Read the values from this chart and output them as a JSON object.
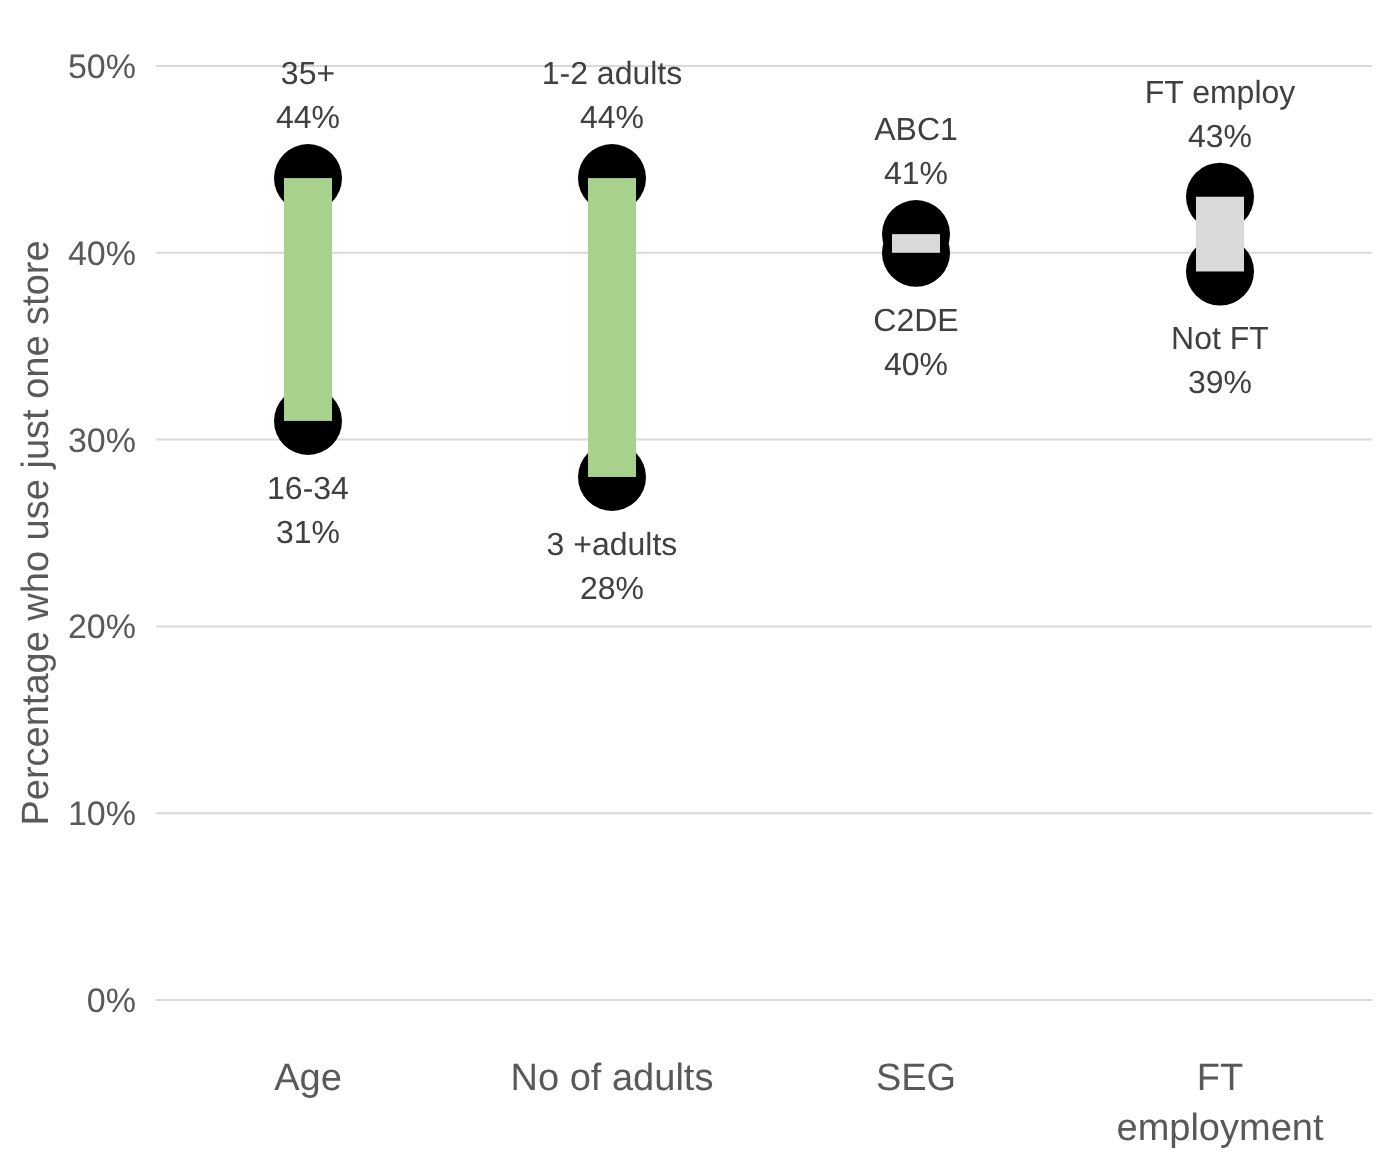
{
  "chart_data": {
    "type": "bar",
    "ylabel": "Percentage who use just one store",
    "categories": [
      "Age",
      "No of adults",
      "SEG",
      "FT employment"
    ],
    "ylim": [
      0,
      50
    ],
    "yticks": [
      {
        "value": 0,
        "label": "0%"
      },
      {
        "value": 10,
        "label": "10%"
      },
      {
        "value": 20,
        "label": "20%"
      },
      {
        "value": 30,
        "label": "30%"
      },
      {
        "value": 40,
        "label": "40%"
      },
      {
        "value": 50,
        "label": "50%"
      }
    ],
    "grid": "y",
    "marker": "circle",
    "series": [
      {
        "values": [
          13,
          16,
          1,
          4
        ],
        "base": [
          31,
          28,
          40,
          39
        ],
        "colors": [
          "#a9d18e",
          "#a9d18e",
          "#d9d9d9",
          "#d9d9d9"
        ]
      },
      {
        "type": "scatter",
        "color": "#000000",
        "values": [
          44,
          44,
          41,
          43
        ],
        "value_labels": [
          "44%",
          "44%",
          "41%",
          "43%"
        ]
      },
      {
        "type": "scatter",
        "color": "#000000",
        "values": [
          31,
          28,
          40,
          39
        ],
        "value_labels": [
          "31%",
          "28%",
          "40%",
          "39%"
        ]
      }
    ],
    "annotations": [
      {
        "text": "35+",
        "x": "Age",
        "y": 44
      },
      {
        "text": "1-2 adults",
        "x": "No of adults",
        "y": 44
      },
      {
        "text": "ABC1",
        "x": "SEG",
        "y": 41
      },
      {
        "text": "FT employ",
        "x": "FT employment",
        "y": 43
      },
      {
        "text": "16-34",
        "x": "Age",
        "y": 31
      },
      {
        "text": "3 +adults",
        "x": "No of adults",
        "y": 28
      },
      {
        "text": "C2DE",
        "x": "SEG",
        "y": 40
      },
      {
        "text": "Not FT",
        "x": "FT employment",
        "y": 39
      }
    ]
  }
}
